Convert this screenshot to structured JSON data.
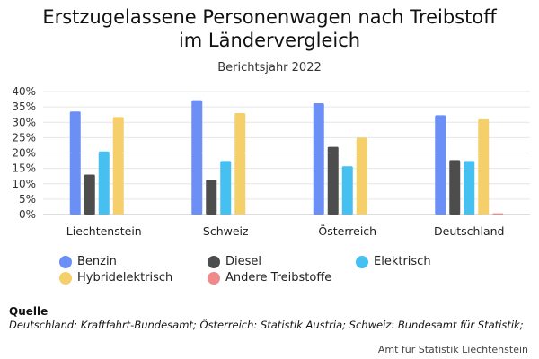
{
  "chart_data": {
    "type": "bar",
    "title_line1": "Erstzugelassene Personenwagen nach Treibstoff",
    "title_line2": "im Ländervergleich",
    "subtitle": "Berichtsjahr 2022",
    "categories": [
      "Liechtenstein",
      "Schweiz",
      "Österreich",
      "Deutschland"
    ],
    "series": [
      {
        "name": "Benzin",
        "color": "#6b8ff5",
        "values": [
          33.5,
          37.2,
          36.2,
          32.3
        ]
      },
      {
        "name": "Diesel",
        "color": "#4d4d4d",
        "values": [
          13.0,
          11.3,
          22.0,
          17.7
        ]
      },
      {
        "name": "Elektrisch",
        "color": "#45c0f0",
        "values": [
          20.5,
          17.4,
          15.7,
          17.4
        ]
      },
      {
        "name": "Hybridelektrisch",
        "color": "#f5cf6a",
        "values": [
          31.7,
          33.0,
          25.0,
          31.0
        ]
      },
      {
        "name": "Andere Treibstoffe",
        "color": "#f08a8a",
        "values": [
          0,
          0,
          0,
          0.4
        ]
      }
    ],
    "ylim": [
      0,
      40
    ],
    "yticks": [
      "0%",
      "5%",
      "10%",
      "15%",
      "20%",
      "25%",
      "30%",
      "35%",
      "40%"
    ],
    "grid": true,
    "legend_position": "bottom"
  },
  "source": {
    "heading": "Quelle",
    "text": "Deutschland: Kraftfahrt-Bundesamt; Österreich: Statistik Austria; Schweiz: Bundesamt für Statistik;"
  },
  "credit": "Amt für Statistik Liechtenstein"
}
